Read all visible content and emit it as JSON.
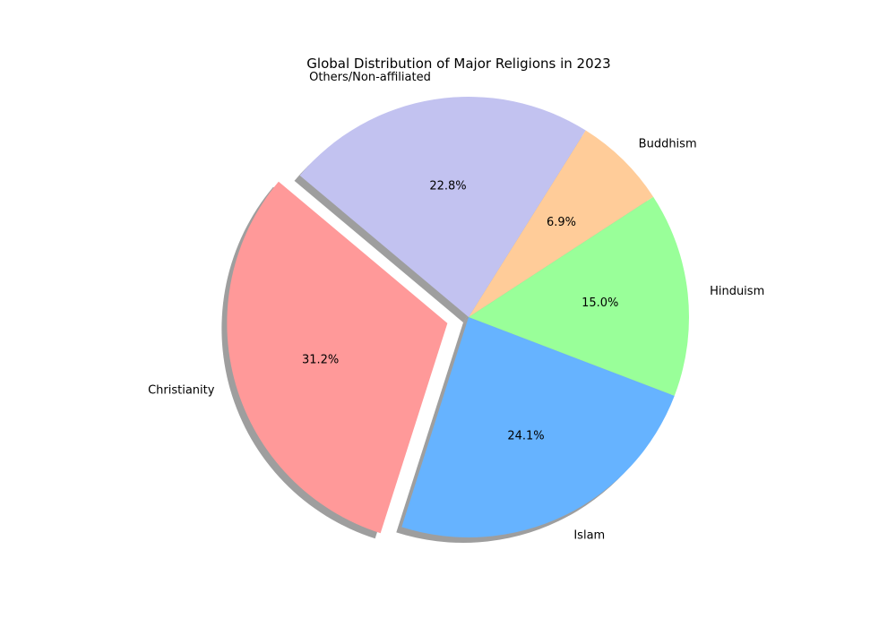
{
  "chart_data": {
    "type": "pie",
    "title": "Global Distribution of Major Religions in 2023",
    "slices": [
      {
        "label": "Christianity",
        "value": 31.2,
        "percent_label": "31.2%",
        "color": "#ff9999",
        "exploded": true
      },
      {
        "label": "Islam",
        "value": 24.1,
        "percent_label": "24.1%",
        "color": "#66b3ff",
        "exploded": false
      },
      {
        "label": "Hinduism",
        "value": 15.0,
        "percent_label": "15.0%",
        "color": "#99ff99",
        "exploded": false
      },
      {
        "label": "Buddhism",
        "value": 6.9,
        "percent_label": "6.9%",
        "color": "#ffcc99",
        "exploded": false
      },
      {
        "label": "Others/Non-affiliated",
        "value": 22.8,
        "percent_label": "22.8%",
        "color": "#c2c2f0",
        "exploded": false
      }
    ],
    "start_angle_deg": 140,
    "shadow": true
  }
}
